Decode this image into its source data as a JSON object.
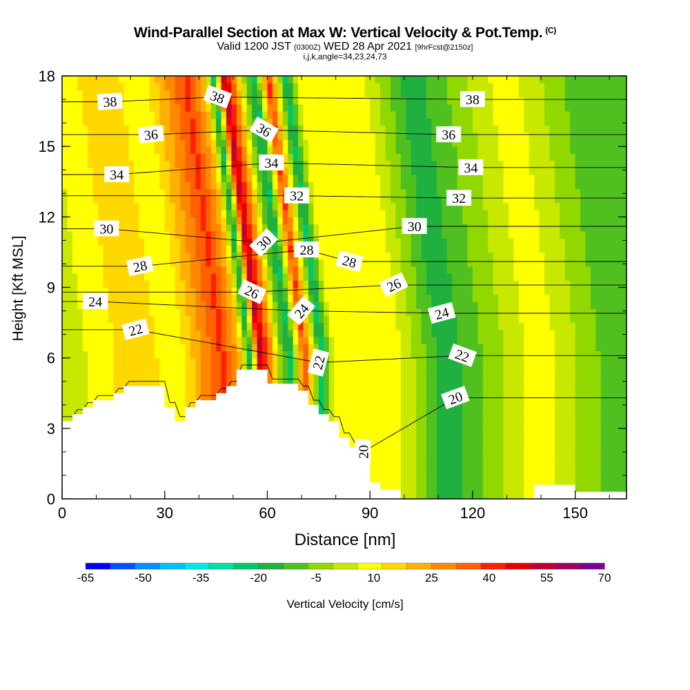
{
  "title": {
    "main": "Wind-Parallel Section at Max W: Vertical Velocity & Pot.Temp.",
    "copyright": "(C)",
    "valid_prefix": "Valid 1200 JST",
    "valid_zulu": "(0300Z)",
    "valid_date": "WED 28 Apr 2021",
    "forecast": "[9hrFcst@2150z]",
    "grid_info": "i,j,k,angle=34,23,24,73"
  },
  "colors": {
    "palette": [
      "#0000ff",
      "#0050ff",
      "#0090ff",
      "#00c0ff",
      "#00e8e8",
      "#00e0a0",
      "#00c868",
      "#20b040",
      "#50c020",
      "#90d800",
      "#c8e800",
      "#ffff00",
      "#ffd800",
      "#ffb000",
      "#ff8800",
      "#ff6000",
      "#ff2000",
      "#e80000",
      "#c00030",
      "#a00060",
      "#7a0090"
    ]
  },
  "chart_data": {
    "type": "heatmap",
    "xlabel": "Distance [nm]",
    "ylabel": "Height [Kft MSL]",
    "xlim": [
      0,
      165
    ],
    "ylim": [
      0,
      18
    ],
    "x_ticks": [
      "0",
      "30",
      "60",
      "90",
      "120",
      "150"
    ],
    "y_ticks": [
      "0",
      "3",
      "6",
      "9",
      "12",
      "15",
      "18"
    ],
    "colorbar": {
      "label": "Vertical Velocity [cm/s]",
      "tick_labels": [
        "-65",
        "-50",
        "-35",
        "-20",
        "-5",
        "10",
        "25",
        "40",
        "55",
        "70"
      ],
      "range": [
        -65,
        70
      ]
    },
    "vertical_velocity_columns_cm_s": [
      {
        "x": 4,
        "w": 3
      },
      {
        "x": 12,
        "w": 10
      },
      {
        "x": 22,
        "w": 16
      },
      {
        "x": 34,
        "w": 8
      },
      {
        "x": 47,
        "w": 40
      },
      {
        "x": 52,
        "w": 20
      },
      {
        "x": 55,
        "w": -22
      },
      {
        "x": 58,
        "w": 55
      },
      {
        "x": 62,
        "w": 20
      },
      {
        "x": 64,
        "w": -5
      },
      {
        "x": 67,
        "w": -22
      },
      {
        "x": 71,
        "w": 40
      },
      {
        "x": 76,
        "w": -24
      },
      {
        "x": 80,
        "w": 10
      },
      {
        "x": 87,
        "w": 12
      },
      {
        "x": 96,
        "w": 12
      },
      {
        "x": 112,
        "w": -18
      },
      {
        "x": 140,
        "w": 10
      },
      {
        "x": 160,
        "w": -10
      }
    ],
    "potential_temperature_labels": [
      {
        "text": "38",
        "x": 14,
        "y": 16.9,
        "rot": -4
      },
      {
        "text": "38",
        "x": 45.4,
        "y": 17.1,
        "rot": 20
      },
      {
        "text": "38",
        "x": 120,
        "y": 17.0,
        "rot": 0
      },
      {
        "text": "36",
        "x": 26,
        "y": 15.5,
        "rot": -6
      },
      {
        "text": "36",
        "x": 59,
        "y": 15.7,
        "rot": 30
      },
      {
        "text": "36",
        "x": 113,
        "y": 15.5,
        "rot": 0
      },
      {
        "text": "34",
        "x": 16,
        "y": 13.8,
        "rot": 0
      },
      {
        "text": "34",
        "x": 61.2,
        "y": 14.3,
        "rot": 0
      },
      {
        "text": "34",
        "x": 119.5,
        "y": 14.1,
        "rot": 0
      },
      {
        "text": "32",
        "x": 68.6,
        "y": 12.9,
        "rot": 0
      },
      {
        "text": "32",
        "x": 116,
        "y": 12.8,
        "rot": 0
      },
      {
        "text": "30",
        "x": 13,
        "y": 11.5,
        "rot": 0
      },
      {
        "text": "30",
        "x": 59,
        "y": 10.9,
        "rot": -45
      },
      {
        "text": "30",
        "x": 103,
        "y": 11.6,
        "rot": 0
      },
      {
        "text": "28",
        "x": 22.8,
        "y": 9.9,
        "rot": -12
      },
      {
        "text": "28",
        "x": 71.5,
        "y": 10.6,
        "rot": 0
      },
      {
        "text": "28",
        "x": 84,
        "y": 10.1,
        "rot": 15
      },
      {
        "text": "26",
        "x": 55.5,
        "y": 8.8,
        "rot": 25
      },
      {
        "text": "26",
        "x": 97,
        "y": 9.1,
        "rot": -25
      },
      {
        "text": "24",
        "x": 9.7,
        "y": 8.4,
        "rot": 0
      },
      {
        "text": "24",
        "x": 70,
        "y": 8.0,
        "rot": -50
      },
      {
        "text": "24",
        "x": 111,
        "y": 7.9,
        "rot": -15
      },
      {
        "text": "22",
        "x": 21.5,
        "y": 7.2,
        "rot": -15
      },
      {
        "text": "22",
        "x": 75,
        "y": 5.8,
        "rot": -75
      },
      {
        "text": "22",
        "x": 117,
        "y": 6.1,
        "rot": 20
      },
      {
        "text": "20",
        "x": 115,
        "y": 4.3,
        "rot": -20
      },
      {
        "text": "20",
        "x": 88,
        "y": 2.0,
        "rot": -90
      }
    ],
    "terrain_height_kft": [
      [
        0,
        3.3
      ],
      [
        3,
        3.6
      ],
      [
        6,
        3.9
      ],
      [
        9,
        4.2
      ],
      [
        12,
        4.2
      ],
      [
        15,
        4.5
      ],
      [
        18,
        4.8
      ],
      [
        21,
        4.8
      ],
      [
        24,
        4.8
      ],
      [
        27,
        4.8
      ],
      [
        30,
        3.9
      ],
      [
        33,
        3.3
      ],
      [
        36,
        3.9
      ],
      [
        39,
        4.2
      ],
      [
        42,
        4.2
      ],
      [
        45,
        4.5
      ],
      [
        48,
        4.8
      ],
      [
        51,
        5.5
      ],
      [
        54,
        5.5
      ],
      [
        57,
        5.5
      ],
      [
        60,
        4.9
      ],
      [
        63,
        4.9
      ],
      [
        66,
        4.9
      ],
      [
        69,
        4.6
      ],
      [
        72,
        4.0
      ],
      [
        75,
        3.6
      ],
      [
        78,
        3.3
      ],
      [
        81,
        2.6
      ],
      [
        84,
        2.2
      ],
      [
        87,
        1.6
      ],
      [
        90,
        0.7
      ],
      [
        93,
        0.4
      ],
      [
        96,
        0.4
      ],
      [
        99,
        0
      ],
      [
        120,
        0
      ],
      [
        138,
        0.6
      ],
      [
        144,
        0.6
      ],
      [
        150,
        0.3
      ],
      [
        165,
        0.3
      ]
    ],
    "grid": false
  }
}
